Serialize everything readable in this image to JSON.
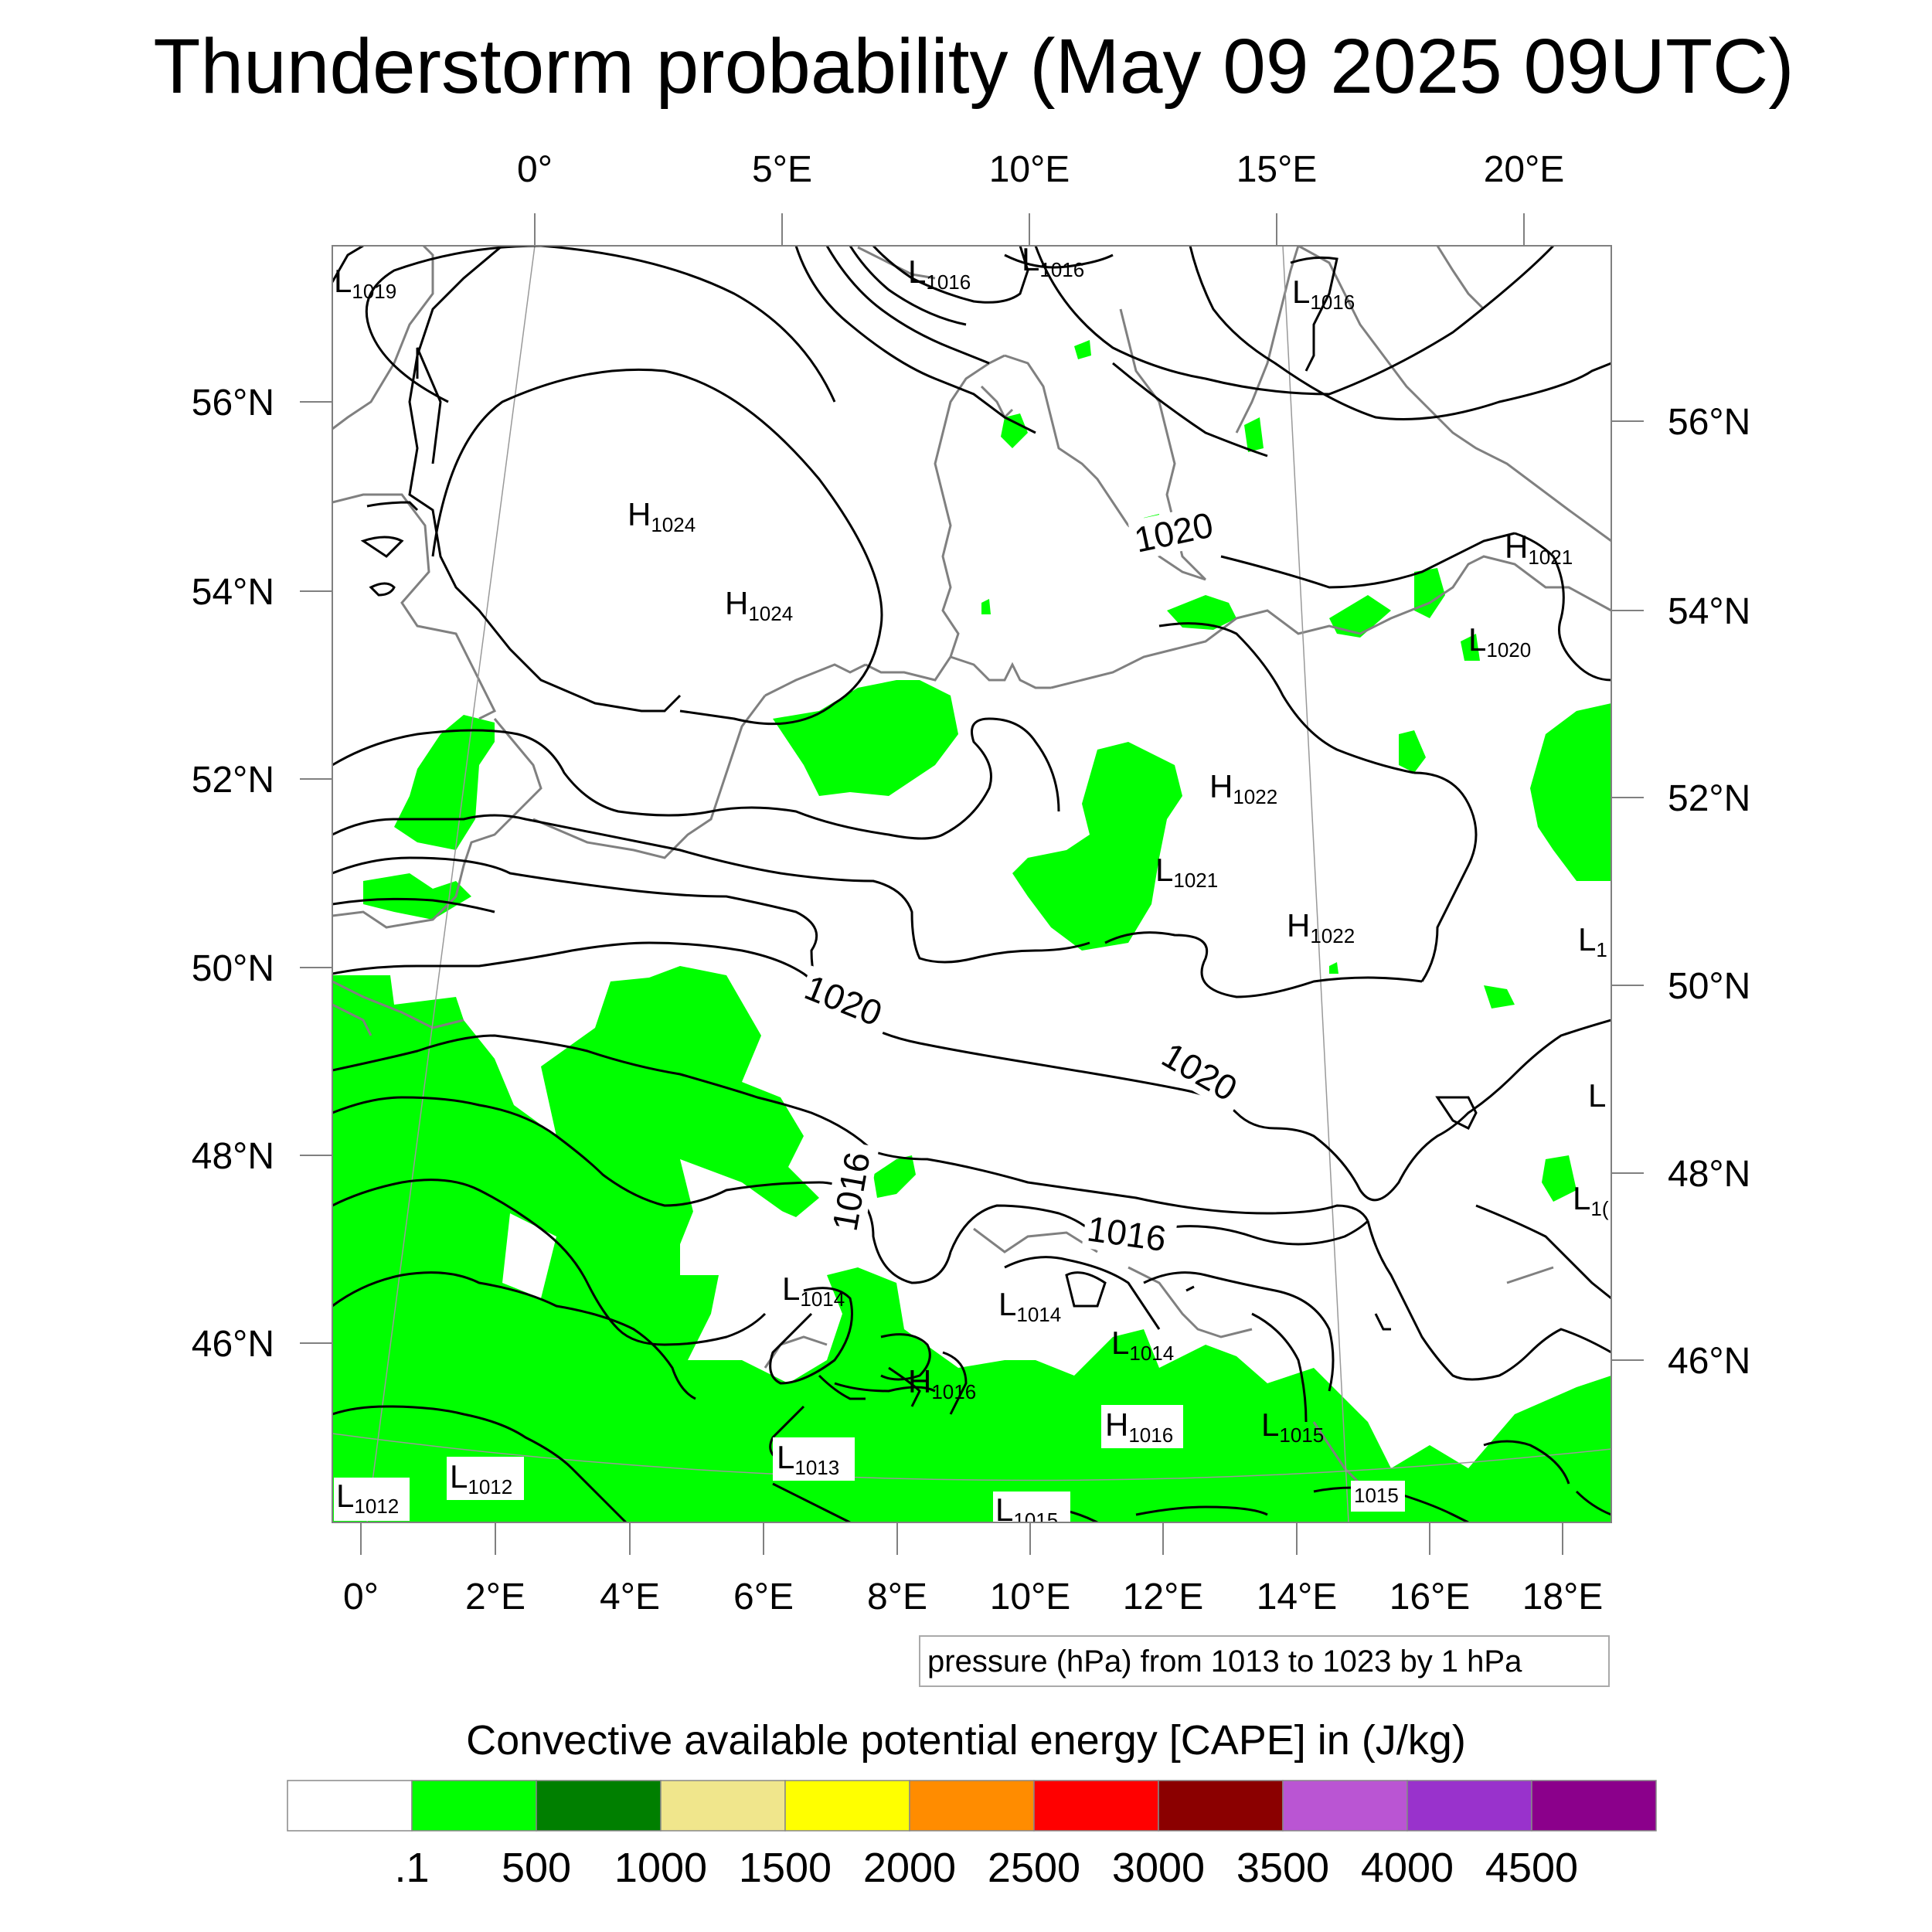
{
  "title": "Thunderstorm probability (May 09 2025 09UTC)",
  "top_lon_labels": [
    "0°",
    "5°E",
    "10°E",
    "15°E",
    "20°E"
  ],
  "bottom_lon_labels": [
    "0°",
    "2°E",
    "4°E",
    "6°E",
    "8°E",
    "10°E",
    "12°E",
    "14°E",
    "16°E",
    "18°E"
  ],
  "left_lat_labels": [
    "56°N",
    "54°N",
    "52°N",
    "50°N",
    "48°N",
    "46°N"
  ],
  "right_lat_labels": [
    "56°N",
    "54°N",
    "52°N",
    "50°N",
    "48°N",
    "46°N"
  ],
  "pressure_centers": [
    {
      "t": "L",
      "v": "1019"
    },
    {
      "t": "L",
      "v": "1016"
    },
    {
      "t": "L",
      "v": "1016"
    },
    {
      "t": "L",
      "v": "1016"
    },
    {
      "t": "H",
      "v": "1024"
    },
    {
      "t": "H",
      "v": "1024"
    },
    {
      "t": "H",
      "v": "1021"
    },
    {
      "t": "L",
      "v": "1020"
    },
    {
      "t": "H",
      "v": "1022"
    },
    {
      "t": "L",
      "v": "1021"
    },
    {
      "t": "H",
      "v": "1022"
    },
    {
      "t": "L",
      "v": "1014"
    },
    {
      "t": "L",
      "v": "1014"
    },
    {
      "t": "L",
      "v": "1014"
    },
    {
      "t": "H",
      "v": "1016"
    },
    {
      "t": "H",
      "v": "1016"
    },
    {
      "t": "L",
      "v": "1015"
    },
    {
      "t": "L",
      "v": "1013"
    },
    {
      "t": "L",
      "v": "1012"
    },
    {
      "t": "L",
      "v": "1012"
    },
    {
      "t": "L",
      "v": "1015"
    },
    {
      "t": "",
      "v": "1015"
    },
    {
      "t": "L",
      "v": "1"
    },
    {
      "t": "L",
      "v": ""
    },
    {
      "t": "L",
      "v": "1("
    }
  ],
  "contour_labels": [
    "1020",
    "1020",
    "1020",
    "1016",
    "1016"
  ],
  "pressure_info": "pressure (hPa) from 1013 to 1023 by 1 hPa",
  "colorbar": {
    "title": "Convective available potential energy [CAPE] in (J/kg)",
    "colors": [
      "#ffffff",
      "#00ff00",
      "#007f00",
      "#f0e68c",
      "#ffff00",
      "#ff8c00",
      "#ff0000",
      "#8b0000",
      "#ba55d3",
      "#9932cc",
      "#8b008b"
    ],
    "labels": [
      ".1",
      "500",
      "1000",
      "1500",
      "2000",
      "2500",
      "3000",
      "3500",
      "4000",
      "4500"
    ]
  },
  "colors": {
    "cape_green": "#00ff00",
    "coast": "#808080",
    "isobar": "#000000"
  }
}
